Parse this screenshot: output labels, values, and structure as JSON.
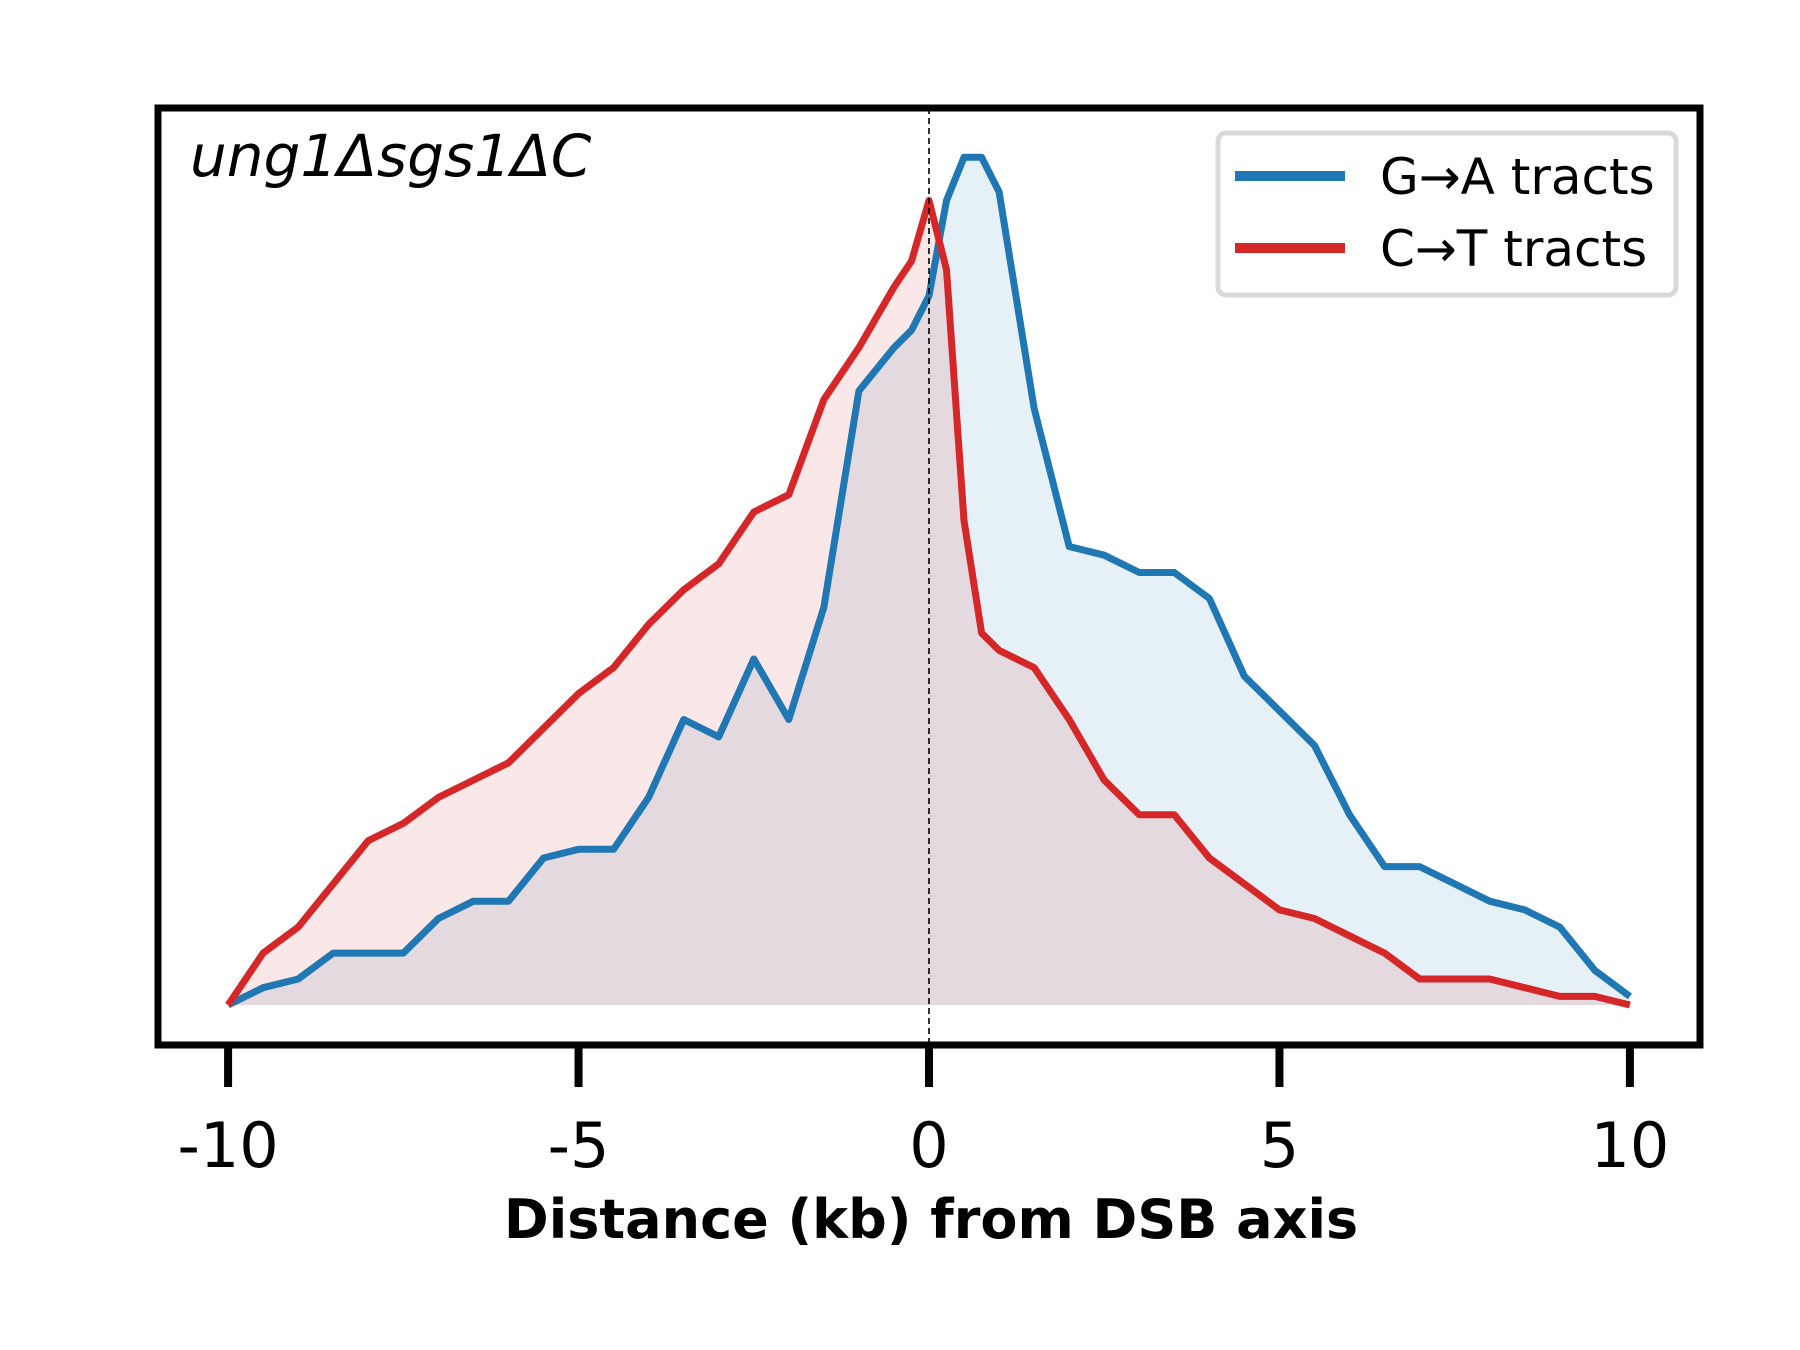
{
  "chart_data": {
    "type": "area",
    "panel_label": "ung1Δsgs1ΔC",
    "xlabel": "Distance (kb) from DSB axis",
    "ylabel": "",
    "xlim": [
      -11.0,
      11.0
    ],
    "ylim": [
      0,
      1.0
    ],
    "x_ticks": [
      -10,
      -5,
      0,
      5,
      10
    ],
    "x_tick_labels": [
      "-10",
      "-5",
      "0",
      "5",
      "10"
    ],
    "y_ticks_shown": false,
    "vertical_reference_line_x": 0,
    "legend_position": "top-right",
    "x": [
      -10,
      -9.5,
      -9,
      -8.5,
      -8,
      -7.5,
      -7,
      -6.5,
      -6,
      -5.5,
      -5,
      -4.5,
      -4,
      -3.5,
      -3,
      -2.5,
      -2,
      -1.5,
      -1,
      -0.5,
      -0.25,
      0,
      0.25,
      0.5,
      0.75,
      1,
      1.5,
      2,
      2.5,
      3,
      3.5,
      4,
      4.5,
      5,
      5.5,
      6,
      6.5,
      7,
      7.5,
      8,
      8.5,
      9,
      9.5,
      10
    ],
    "series": [
      {
        "name": "G→A tracts",
        "color": "#1f77b4",
        "fill": "#e8f0f8",
        "values": [
          0.0,
          0.02,
          0.03,
          0.06,
          0.06,
          0.06,
          0.1,
          0.12,
          0.12,
          0.17,
          0.18,
          0.18,
          0.24,
          0.33,
          0.31,
          0.4,
          0.33,
          0.46,
          0.71,
          0.76,
          0.78,
          0.82,
          0.93,
          0.98,
          0.98,
          0.94,
          0.69,
          0.53,
          0.52,
          0.5,
          0.5,
          0.47,
          0.38,
          0.34,
          0.3,
          0.22,
          0.16,
          0.16,
          0.14,
          0.12,
          0.11,
          0.09,
          0.04,
          0.01
        ]
      },
      {
        "name": "C→T tracts",
        "color": "#d62728",
        "fill": "#f8e6e7",
        "values": [
          0.0,
          0.06,
          0.09,
          0.14,
          0.19,
          0.21,
          0.24,
          0.26,
          0.28,
          0.32,
          0.36,
          0.39,
          0.44,
          0.48,
          0.51,
          0.57,
          0.59,
          0.7,
          0.76,
          0.83,
          0.86,
          0.93,
          0.85,
          0.56,
          0.43,
          0.41,
          0.39,
          0.33,
          0.26,
          0.22,
          0.22,
          0.17,
          0.14,
          0.11,
          0.1,
          0.08,
          0.06,
          0.03,
          0.03,
          0.03,
          0.02,
          0.01,
          0.01,
          0.0
        ]
      }
    ]
  }
}
